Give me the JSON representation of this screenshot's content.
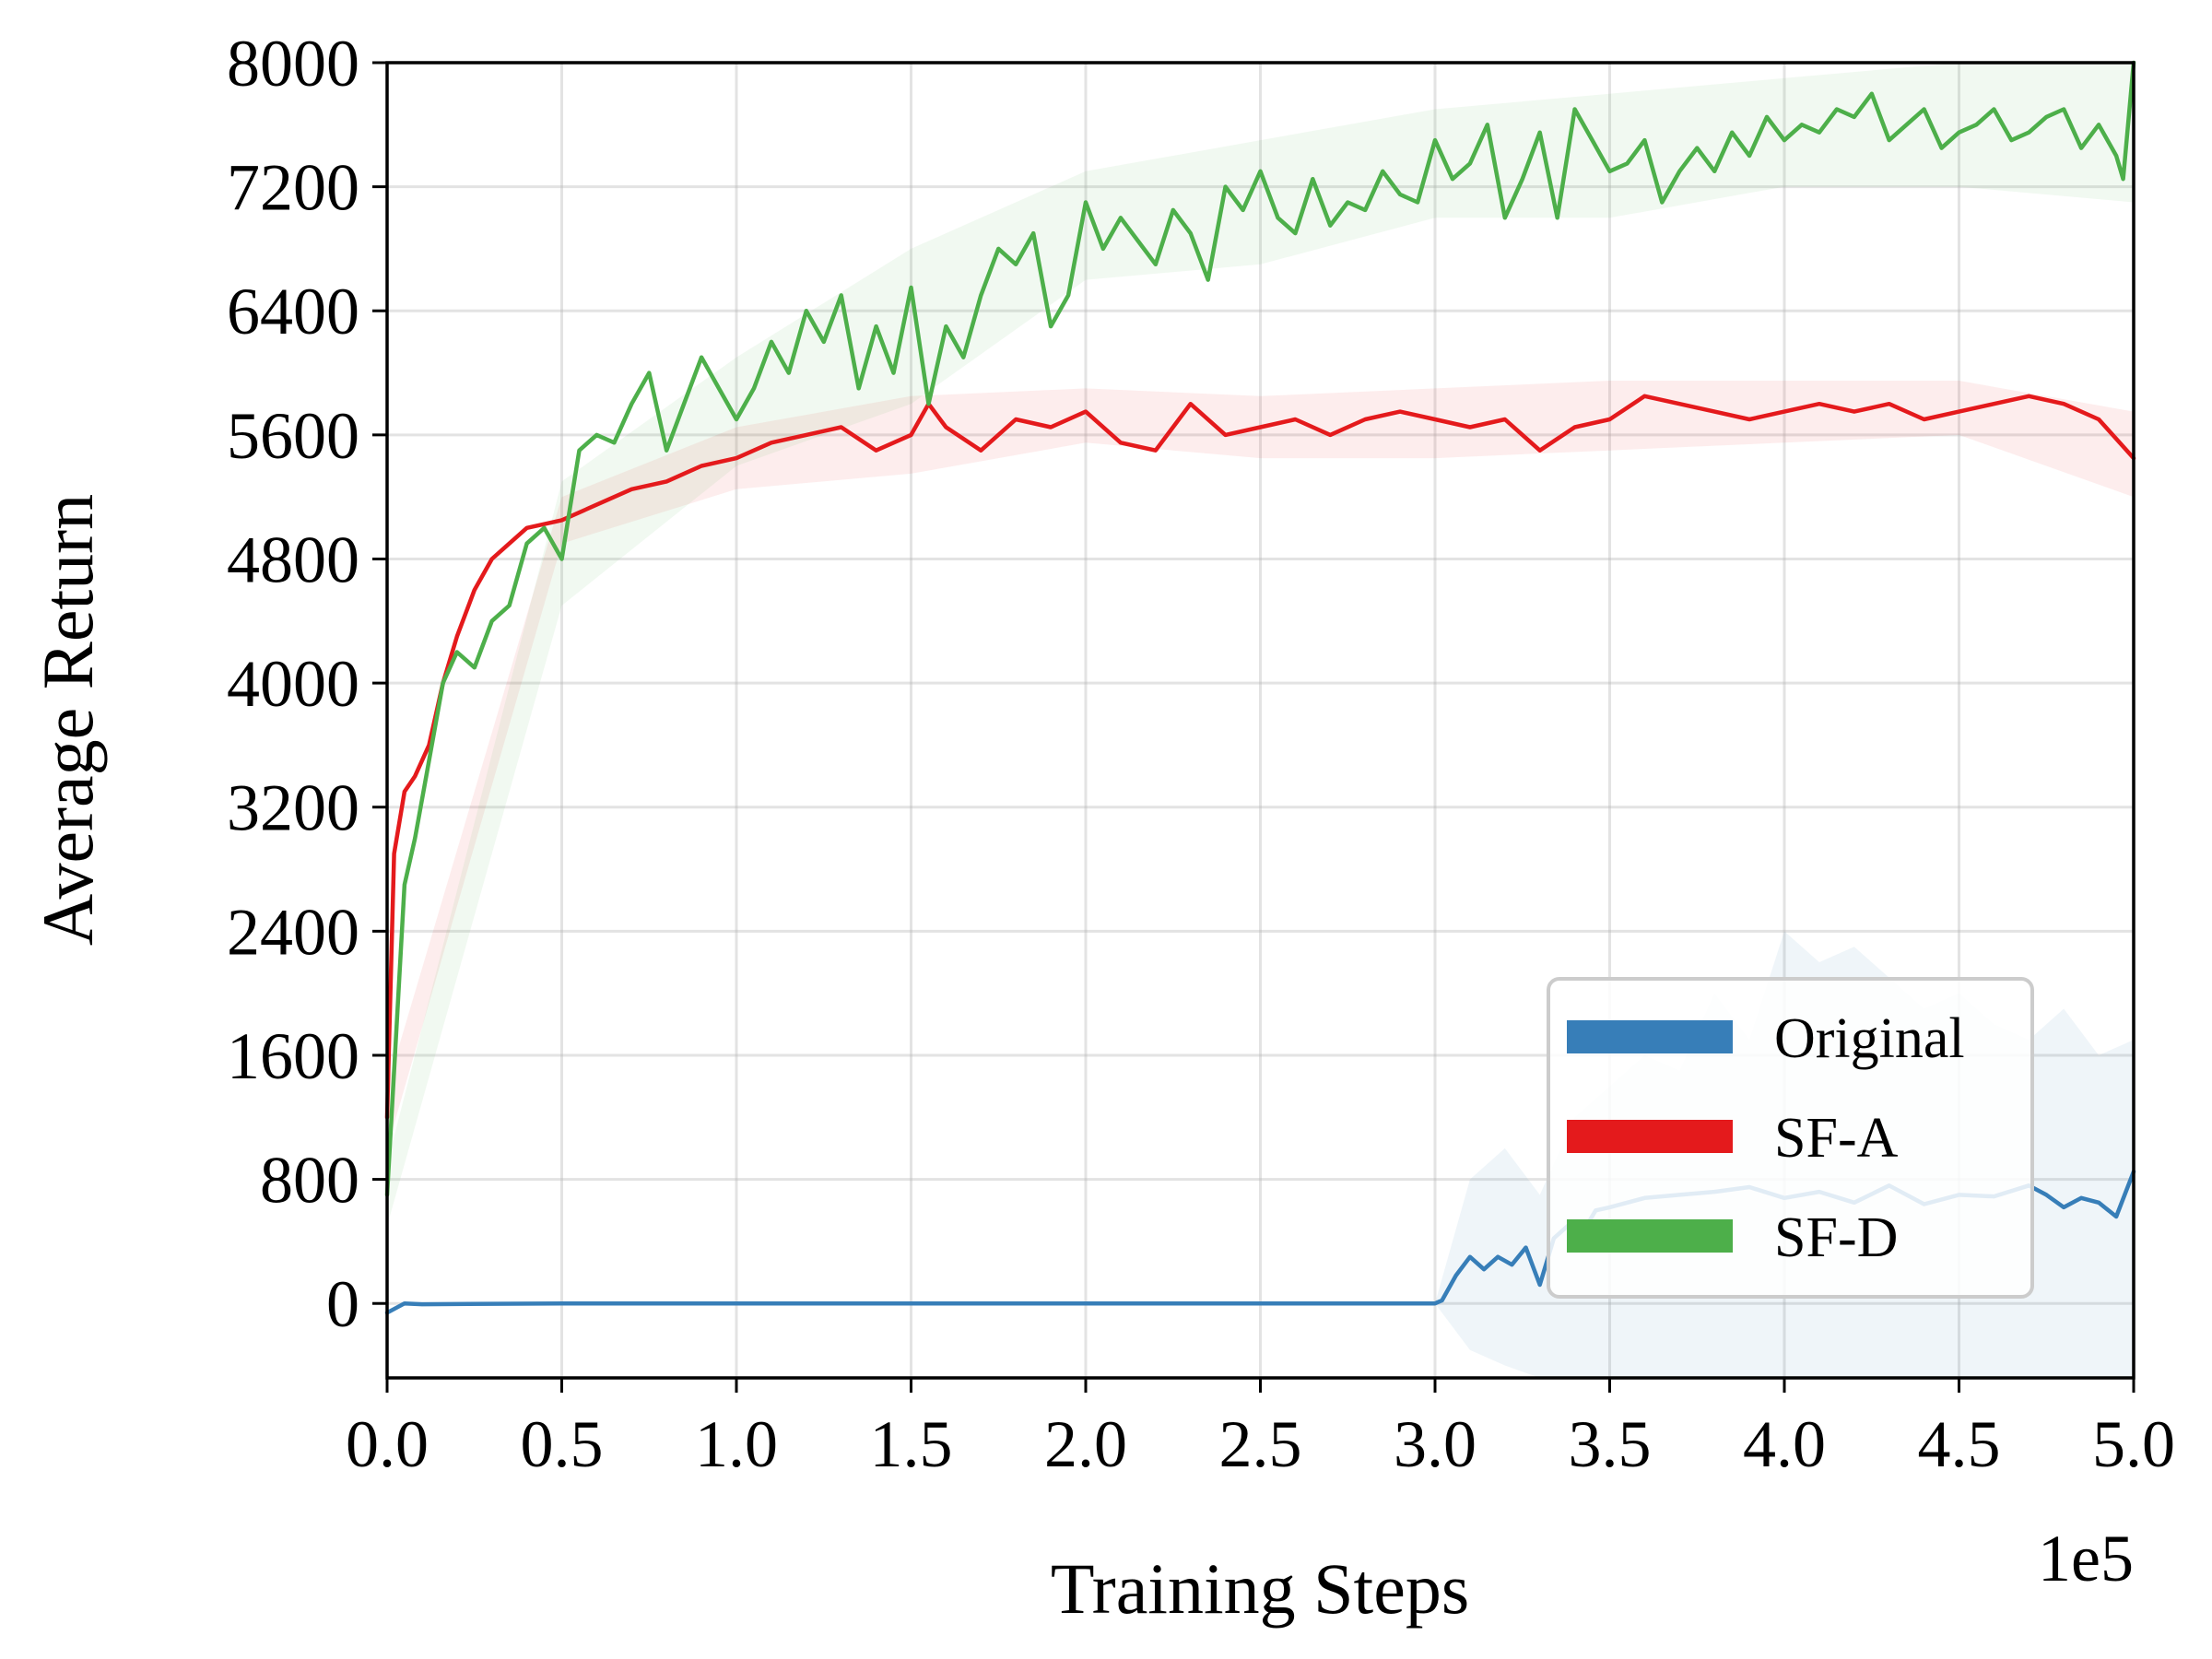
{
  "chart_data": {
    "type": "line",
    "title": "",
    "xlabel": "Training Steps",
    "ylabel": "Average Return",
    "x_offset_label": "1e5",
    "xlim": [
      0,
      5.0
    ],
    "ylim": [
      -480,
      8000
    ],
    "x_ticks": [
      "0.0",
      "0.5",
      "1.0",
      "1.5",
      "2.0",
      "2.5",
      "3.0",
      "3.5",
      "4.0",
      "4.5",
      "5.0"
    ],
    "y_ticks": [
      "0",
      "800",
      "1600",
      "2400",
      "3200",
      "4000",
      "4800",
      "5600",
      "6400",
      "7200",
      "8000"
    ],
    "grid": true,
    "legend_position": "lower-right",
    "series": [
      {
        "name": "Original",
        "color": "#377eb8",
        "x": [
          0.0,
          0.05,
          0.1,
          0.5,
          1.0,
          2.0,
          2.5,
          3.0,
          3.02,
          3.06,
          3.1,
          3.14,
          3.18,
          3.22,
          3.26,
          3.3,
          3.34,
          3.38,
          3.42,
          3.46,
          3.5,
          3.6,
          3.7,
          3.8,
          3.9,
          4.0,
          4.1,
          4.2,
          4.3,
          4.4,
          4.5,
          4.6,
          4.7,
          4.75,
          4.8,
          4.85,
          4.9,
          4.95,
          5.0
        ],
        "values": [
          -60,
          0,
          -5,
          0,
          0,
          0,
          0,
          0,
          20,
          180,
          300,
          220,
          300,
          250,
          360,
          120,
          420,
          500,
          450,
          600,
          620,
          680,
          700,
          720,
          750,
          680,
          720,
          650,
          760,
          640,
          700,
          690,
          760,
          700,
          620,
          680,
          650,
          560,
          850
        ],
        "band_x": [
          3.0,
          3.1,
          3.2,
          3.3,
          3.4,
          3.5,
          3.6,
          3.7,
          3.8,
          3.9,
          4.0,
          4.1,
          4.2,
          4.3,
          4.4,
          4.5,
          4.6,
          4.7,
          4.8,
          4.9,
          5.0
        ],
        "band_upper": [
          0,
          800,
          1000,
          700,
          1200,
          1400,
          1600,
          1500,
          2000,
          1700,
          2400,
          2200,
          2300,
          2100,
          1900,
          2000,
          1800,
          1700,
          1900,
          1600,
          1700
        ],
        "band_lower": [
          0,
          -300,
          -400,
          -480,
          -480,
          -480,
          -480,
          -480,
          -480,
          -480,
          -480,
          -480,
          -480,
          -480,
          -480,
          -480,
          -480,
          -480,
          -480,
          -480,
          -480
        ]
      },
      {
        "name": "SF-A",
        "color": "#e41a1c",
        "x": [
          0.0,
          0.02,
          0.05,
          0.08,
          0.12,
          0.16,
          0.2,
          0.25,
          0.3,
          0.35,
          0.4,
          0.5,
          0.6,
          0.7,
          0.8,
          0.9,
          1.0,
          1.1,
          1.2,
          1.3,
          1.4,
          1.5,
          1.55,
          1.6,
          1.7,
          1.8,
          1.9,
          2.0,
          2.1,
          2.2,
          2.3,
          2.4,
          2.5,
          2.6,
          2.7,
          2.8,
          2.9,
          3.0,
          3.1,
          3.2,
          3.3,
          3.4,
          3.5,
          3.6,
          3.7,
          3.8,
          3.9,
          4.0,
          4.1,
          4.2,
          4.3,
          4.4,
          4.5,
          4.6,
          4.7,
          4.8,
          4.9,
          5.0
        ],
        "values": [
          1200,
          2900,
          3300,
          3400,
          3600,
          4000,
          4300,
          4600,
          4800,
          4900,
          5000,
          5050,
          5150,
          5250,
          5300,
          5400,
          5450,
          5550,
          5600,
          5650,
          5500,
          5600,
          5800,
          5650,
          5500,
          5700,
          5650,
          5750,
          5550,
          5500,
          5800,
          5600,
          5650,
          5700,
          5600,
          5700,
          5750,
          5700,
          5650,
          5700,
          5500,
          5650,
          5700,
          5850,
          5800,
          5750,
          5700,
          5750,
          5800,
          5750,
          5800,
          5700,
          5750,
          5800,
          5850,
          5800,
          5700,
          5450
        ],
        "band_x": [
          0.0,
          0.5,
          1.0,
          1.5,
          2.0,
          2.5,
          3.0,
          3.5,
          4.0,
          4.5,
          5.0
        ],
        "band_upper": [
          1400,
          5200,
          5650,
          5850,
          5900,
          5850,
          5900,
          5950,
          5950,
          5950,
          5750
        ],
        "band_lower": [
          1000,
          4900,
          5250,
          5350,
          5550,
          5450,
          5450,
          5500,
          5550,
          5600,
          5200
        ]
      },
      {
        "name": "SF-D",
        "color": "#4daf4a",
        "x": [
          0.0,
          0.02,
          0.05,
          0.08,
          0.12,
          0.16,
          0.2,
          0.25,
          0.3,
          0.35,
          0.4,
          0.45,
          0.5,
          0.55,
          0.6,
          0.65,
          0.7,
          0.75,
          0.8,
          0.85,
          0.9,
          0.95,
          1.0,
          1.05,
          1.1,
          1.15,
          1.2,
          1.25,
          1.3,
          1.35,
          1.4,
          1.45,
          1.5,
          1.55,
          1.6,
          1.65,
          1.7,
          1.75,
          1.8,
          1.85,
          1.9,
          1.95,
          2.0,
          2.05,
          2.1,
          2.15,
          2.2,
          2.25,
          2.3,
          2.35,
          2.4,
          2.45,
          2.5,
          2.55,
          2.6,
          2.65,
          2.7,
          2.75,
          2.8,
          2.85,
          2.9,
          2.95,
          3.0,
          3.05,
          3.1,
          3.15,
          3.2,
          3.25,
          3.3,
          3.35,
          3.4,
          3.45,
          3.5,
          3.55,
          3.6,
          3.65,
          3.7,
          3.75,
          3.8,
          3.85,
          3.9,
          3.95,
          4.0,
          4.05,
          4.1,
          4.15,
          4.2,
          4.25,
          4.3,
          4.35,
          4.4,
          4.45,
          4.5,
          4.55,
          4.6,
          4.65,
          4.7,
          4.75,
          4.8,
          4.85,
          4.9,
          4.95,
          4.97,
          5.0
        ],
        "values": [
          700,
          1500,
          2700,
          3000,
          3500,
          4000,
          4200,
          4100,
          4400,
          4500,
          4900,
          5000,
          4800,
          5500,
          5600,
          5550,
          5800,
          6000,
          5500,
          5800,
          6100,
          5900,
          5700,
          5900,
          6200,
          6000,
          6400,
          6200,
          6500,
          5900,
          6300,
          6000,
          6550,
          5800,
          6300,
          6100,
          6500,
          6800,
          6700,
          6900,
          6300,
          6500,
          7100,
          6800,
          7000,
          6850,
          6700,
          7050,
          6900,
          6600,
          7200,
          7050,
          7300,
          7000,
          6900,
          7250,
          6950,
          7100,
          7050,
          7300,
          7150,
          7100,
          7500,
          7250,
          7350,
          7600,
          7000,
          7250,
          7550,
          7000,
          7700,
          7500,
          7300,
          7350,
          7500,
          7100,
          7300,
          7450,
          7300,
          7550,
          7400,
          7650,
          7500,
          7600,
          7550,
          7700,
          7650,
          7800,
          7500,
          7600,
          7700,
          7450,
          7550,
          7600,
          7700,
          7500,
          7550,
          7650,
          7700,
          7450,
          7600,
          7400,
          7250,
          8000
        ],
        "band_x": [
          0.0,
          0.5,
          1.0,
          1.5,
          2.0,
          2.5,
          3.0,
          3.5,
          4.0,
          4.5,
          5.0
        ],
        "band_upper": [
          900,
          5300,
          6100,
          6800,
          7300,
          7500,
          7700,
          7800,
          7900,
          8000,
          8000
        ],
        "band_lower": [
          500,
          4500,
          5400,
          5800,
          6600,
          6700,
          7000,
          7000,
          7200,
          7200,
          7100
        ]
      }
    ]
  }
}
